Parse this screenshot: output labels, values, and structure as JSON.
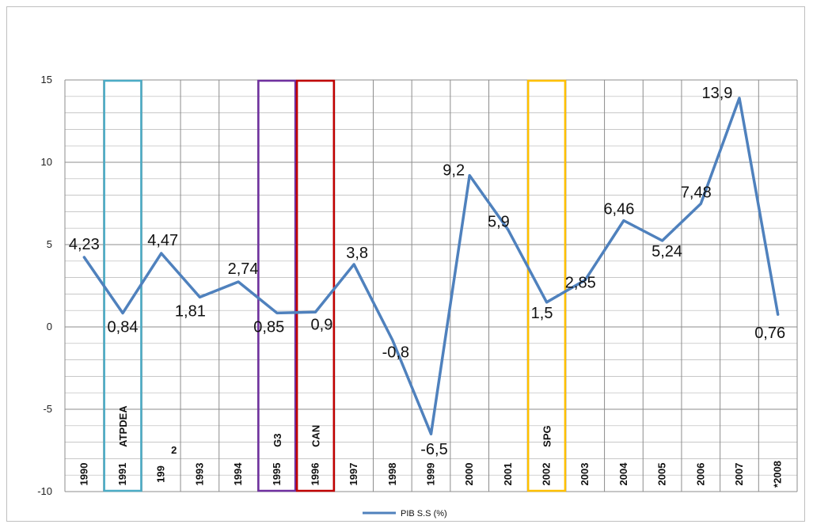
{
  "chart_data": {
    "type": "line",
    "title": "",
    "xlabel": "",
    "ylabel": "",
    "ylim": [
      -10,
      15
    ],
    "yticks": [
      15,
      10,
      5,
      0,
      -5,
      -10
    ],
    "grid": true,
    "legend_position": "bottom",
    "categories": [
      "1990",
      "1991",
      "199\n2",
      "1993",
      "1994",
      "1995",
      "1996",
      "1997",
      "1998",
      "1999",
      "2000",
      "2001",
      "2002",
      "2003",
      "2004",
      "2005",
      "2006",
      "2007",
      "*2008"
    ],
    "series": [
      {
        "name": "PIB S.S (%)",
        "color": "#4f81bd",
        "values": [
          4.23,
          0.84,
          4.47,
          1.81,
          2.74,
          0.85,
          0.9,
          3.8,
          -0.8,
          -6.5,
          9.2,
          5.9,
          1.5,
          2.85,
          6.46,
          5.24,
          7.48,
          13.9,
          0.76
        ],
        "labels": [
          "4,23",
          "0,84",
          "4,47",
          "1,81",
          "2,74",
          "0,85",
          "0,9",
          "3,8",
          "-0,8",
          "-6,5",
          "9,2",
          "5,9",
          "1,5",
          "2,85",
          "6,46",
          "5,24",
          "7,48",
          "13,9",
          "0,76"
        ]
      }
    ],
    "annotations": [
      {
        "label": "ATPDEA",
        "category_index": 1,
        "color": "#4bacc6"
      },
      {
        "label": "G3",
        "category_index": 5,
        "color": "#7030a0"
      },
      {
        "label": "CAN",
        "category_index": 6,
        "color": "#c00000"
      },
      {
        "label": "SPG",
        "category_index": 12,
        "color": "#ffc000"
      }
    ]
  }
}
